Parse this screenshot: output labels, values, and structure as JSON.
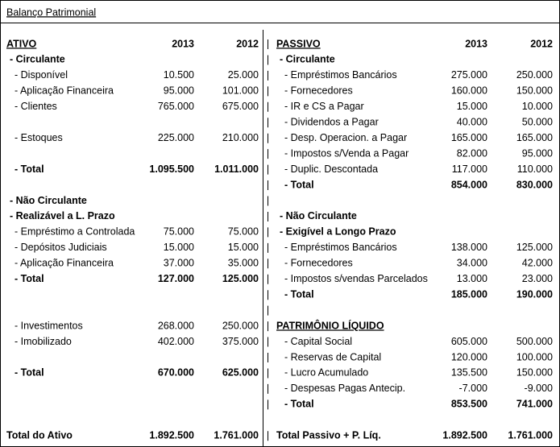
{
  "title": "Balanço Patrimonial",
  "left": {
    "rows": [
      {
        "label": "ATIVO",
        "y2013": "2013",
        "y2012": "2012",
        "style": "heading"
      },
      {
        "label": "- Circulante",
        "style": "group"
      },
      {
        "label": "- Disponível",
        "y2013": "10.500",
        "y2012": "25.000",
        "style": "item"
      },
      {
        "label": "- Aplicação Financeira",
        "y2013": "95.000",
        "y2012": "101.000",
        "style": "item"
      },
      {
        "label": "- Clientes",
        "y2013": "765.000",
        "y2012": "675.000",
        "style": "item"
      },
      null,
      {
        "label": "- Estoques",
        "y2013": "225.000",
        "y2012": "210.000",
        "style": "item"
      },
      null,
      {
        "label": "- Total",
        "y2013": "1.095.500",
        "y2012": "1.011.000",
        "style": "total"
      },
      null,
      {
        "label": "- Não Circulante",
        "style": "group"
      },
      {
        "label": "- Realizável a L. Prazo",
        "style": "group"
      },
      {
        "label": "- Empréstimo a Controlada",
        "y2013": "75.000",
        "y2012": "75.000",
        "style": "item"
      },
      {
        "label": "- Depósitos Judiciais",
        "y2013": "15.000",
        "y2012": "15.000",
        "style": "item"
      },
      {
        "label": "- Aplicação Financeira",
        "y2013": "37.000",
        "y2012": "35.000",
        "style": "item"
      },
      {
        "label": "- Total",
        "y2013": "127.000",
        "y2012": "125.000",
        "style": "total"
      },
      null,
      null,
      {
        "label": "- Investimentos",
        "y2013": "268.000",
        "y2012": "250.000",
        "style": "item"
      },
      {
        "label": "- Imobilizado",
        "y2013": "402.000",
        "y2012": "375.000",
        "style": "item"
      },
      null,
      {
        "label": "- Total",
        "y2013": "670.000",
        "y2012": "625.000",
        "style": "total"
      },
      null,
      null,
      null,
      {
        "label": "Total do Ativo",
        "y2013": "1.892.500",
        "y2012": "1.761.000",
        "style": "grand"
      }
    ]
  },
  "right": {
    "rows": [
      {
        "label": "PASSIVO",
        "y2013": "2013",
        "y2012": "2012",
        "style": "heading"
      },
      {
        "label": "- Circulante",
        "style": "group"
      },
      {
        "label": "- Empréstimos Bancários",
        "y2013": "275.000",
        "y2012": "250.000",
        "style": "item"
      },
      {
        "label": "- Fornecedores",
        "y2013": "160.000",
        "y2012": "150.000",
        "style": "item"
      },
      {
        "label": "- IR e CS a Pagar",
        "y2013": "15.000",
        "y2012": "10.000",
        "style": "item"
      },
      {
        "label": "- Dividendos a Pagar",
        "y2013": "40.000",
        "y2012": "50.000",
        "style": "item"
      },
      {
        "label": "- Desp. Operacion. a Pagar",
        "y2013": "165.000",
        "y2012": "165.000",
        "style": "item"
      },
      {
        "label": "- Impostos s/Venda a Pagar",
        "y2013": "82.000",
        "y2012": "95.000",
        "style": "item"
      },
      {
        "label": "- Duplic. Descontada",
        "y2013": "117.000",
        "y2012": "110.000",
        "style": "item"
      },
      {
        "label": "- Total",
        "y2013": "854.000",
        "y2012": "830.000",
        "style": "total"
      },
      null,
      {
        "label": "- Não Circulante",
        "style": "group"
      },
      {
        "label": "- Exigível a Longo Prazo",
        "style": "group"
      },
      {
        "label": "- Empréstimos Bancários",
        "y2013": "138.000",
        "y2012": "125.000",
        "style": "item"
      },
      {
        "label": "- Fornecedores",
        "y2013": "34.000",
        "y2012": "42.000",
        "style": "item"
      },
      {
        "label": "- Impostos s/vendas Parcelados",
        "y2013": "13.000",
        "y2012": "23.000",
        "style": "item"
      },
      {
        "label": "- Total",
        "y2013": "185.000",
        "y2012": "190.000",
        "style": "total"
      },
      null,
      {
        "label": "PATRIMÔNIO LÍQUIDO",
        "style": "section"
      },
      {
        "label": "- Capital Social",
        "y2013": "605.000",
        "y2012": "500.000",
        "style": "item"
      },
      {
        "label": "- Reservas de Capital",
        "y2013": "120.000",
        "y2012": "100.000",
        "style": "item"
      },
      {
        "label": "- Lucro Acumulado",
        "y2013": "135.500",
        "y2012": "150.000",
        "style": "item"
      },
      {
        "label": "- Despesas Pagas Antecip.",
        "y2013": "-7.000",
        "y2012": "-9.000",
        "style": "item"
      },
      {
        "label": "- Total",
        "y2013": "853.500",
        "y2012": "741.000",
        "style": "total"
      },
      null,
      {
        "label": "Total Passivo + P. Líq.",
        "y2013": "1.892.500",
        "y2012": "1.761.000",
        "style": "grand"
      }
    ]
  }
}
